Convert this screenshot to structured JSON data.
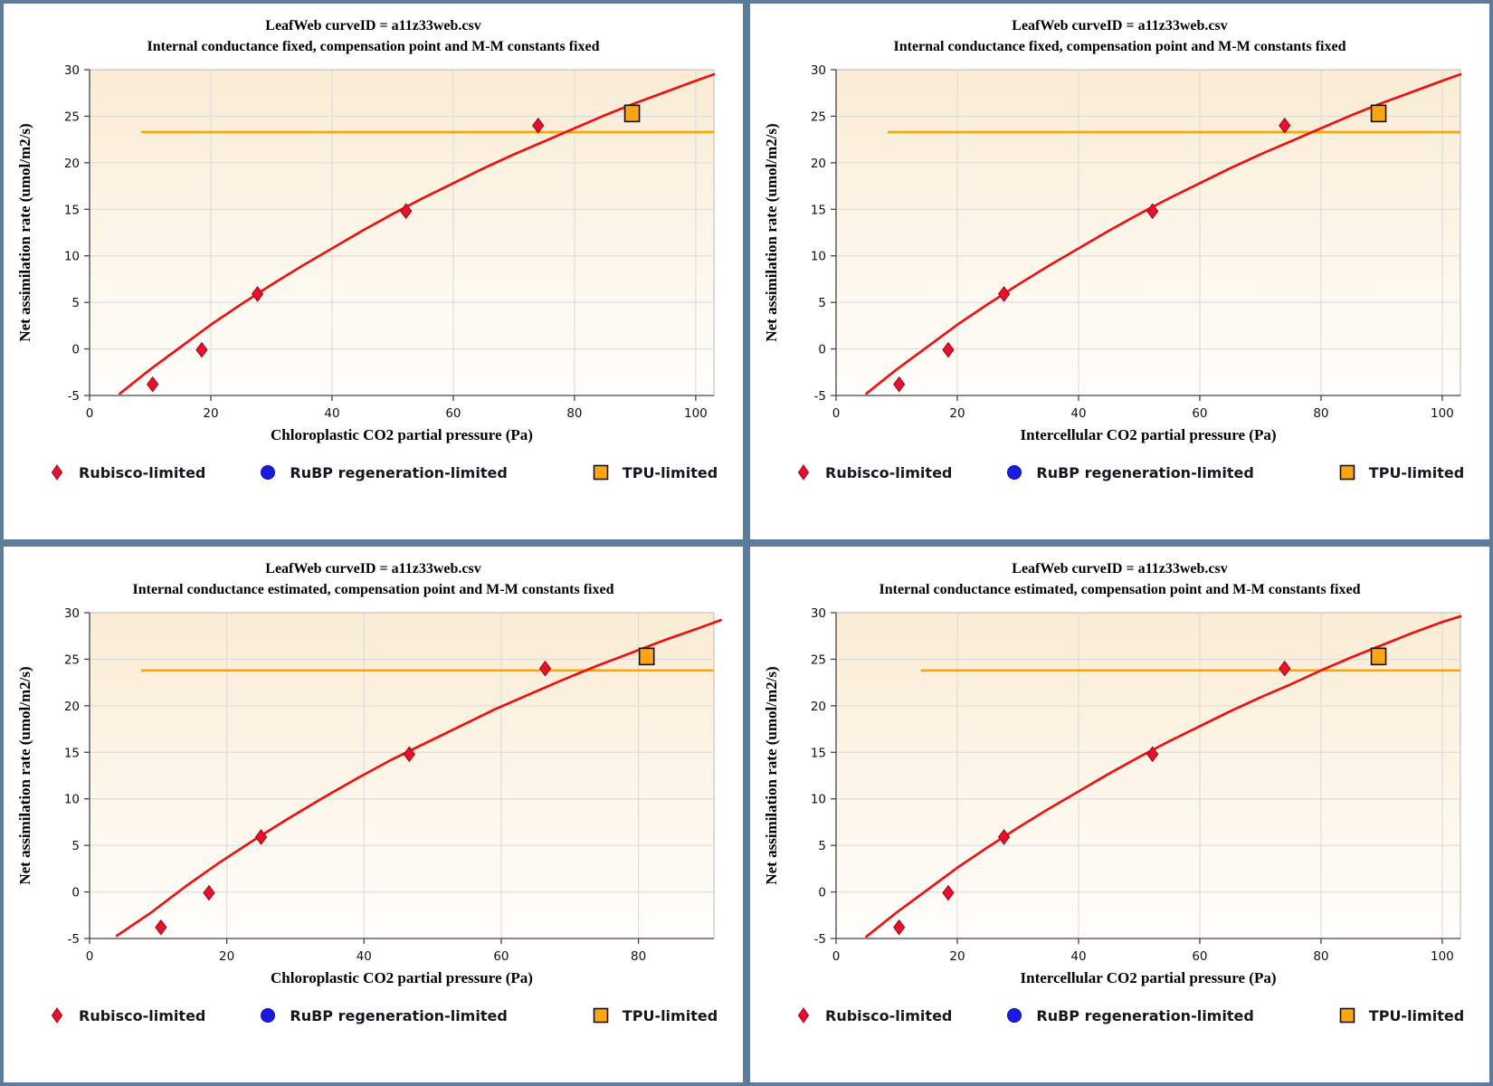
{
  "colors": {
    "frame": "#5d7c9b",
    "panel_bg": "#ffffff",
    "plot_grad_top": "#faecd4",
    "plot_grad_mid": "#fdf6ea",
    "plot_grad_bottom": "#fffefb",
    "grid": "#d8d8d8",
    "plot_border": "#b8b8b8",
    "axis": "#444444",
    "curve_red": "#ee1111",
    "diamond_fill": "#e8112d",
    "diamond_edge": "#9c0018",
    "circle_blue": "#1b1bdd",
    "square_fill": "#ffa513",
    "square_edge": "#111111",
    "tpu_line": "#ffa500",
    "legend_text": "#16161d"
  },
  "legend": {
    "items": [
      {
        "marker": "diamond",
        "label": "Rubisco-limited"
      },
      {
        "marker": "circle",
        "label": "RuBP regeneration-limited"
      },
      {
        "marker": "square",
        "label": "TPU-limited"
      }
    ]
  },
  "chart_data": [
    {
      "type": "scatter",
      "title": "LeafWeb curveID = a11z33web.csv",
      "subtitle": "Internal conductance fixed, compensation point and M-M constants fixed",
      "xlabel": "Chloroplastic CO2 partial pressure (Pa)",
      "ylabel": "Net assimilation rate (umol/m2/s)",
      "xlim": [
        0,
        103
      ],
      "ylim": [
        -5,
        30
      ],
      "x_ticks": [
        0,
        20,
        40,
        60,
        80,
        100
      ],
      "y_ticks": [
        -5,
        0,
        5,
        10,
        15,
        20,
        25,
        30
      ],
      "rubisco_points": [
        [
          10.4,
          -3.8
        ],
        [
          18.5,
          -0.1
        ],
        [
          27.7,
          5.9
        ],
        [
          52.2,
          14.8
        ],
        [
          74.0,
          24.0
        ]
      ],
      "tpu_point": [
        89.5,
        25.3
      ],
      "tpu_line": {
        "y": 23.3,
        "x_start": 8.5
      },
      "fit_curve": {
        "x": [
          5,
          10,
          15,
          20,
          25,
          30,
          35,
          40,
          45,
          50,
          55,
          60,
          65,
          70,
          75,
          80,
          85,
          90,
          95,
          100,
          103
        ],
        "y": [
          -4.8,
          -2.2,
          0.2,
          2.6,
          4.8,
          6.9,
          8.9,
          10.8,
          12.7,
          14.5,
          16.2,
          17.8,
          19.4,
          20.9,
          22.3,
          23.7,
          25.1,
          26.4,
          27.6,
          28.8,
          29.5
        ]
      }
    },
    {
      "type": "scatter",
      "title": "LeafWeb curveID = a11z33web.csv",
      "subtitle": "Internal conductance fixed, compensation point and M-M constants fixed",
      "xlabel": "Intercellular CO2 partial pressure (Pa)",
      "ylabel": "Net assimilation rate (umol/m2/s)",
      "xlim": [
        0,
        103
      ],
      "ylim": [
        -5,
        30
      ],
      "x_ticks": [
        0,
        20,
        40,
        60,
        80,
        100
      ],
      "y_ticks": [
        -5,
        0,
        5,
        10,
        15,
        20,
        25,
        30
      ],
      "rubisco_points": [
        [
          10.4,
          -3.8
        ],
        [
          18.5,
          -0.1
        ],
        [
          27.7,
          5.9
        ],
        [
          52.2,
          14.8
        ],
        [
          74.0,
          24.0
        ]
      ],
      "tpu_point": [
        89.5,
        25.3
      ],
      "tpu_line": {
        "y": 23.3,
        "x_start": 8.5
      },
      "fit_curve": {
        "x": [
          5,
          10,
          15,
          20,
          25,
          30,
          35,
          40,
          45,
          50,
          55,
          60,
          65,
          70,
          75,
          80,
          85,
          90,
          95,
          100,
          103
        ],
        "y": [
          -4.8,
          -2.2,
          0.2,
          2.6,
          4.8,
          6.9,
          8.9,
          10.8,
          12.7,
          14.5,
          16.2,
          17.8,
          19.4,
          20.9,
          22.3,
          23.7,
          25.1,
          26.4,
          27.6,
          28.8,
          29.5
        ]
      }
    },
    {
      "type": "scatter",
      "title": "LeafWeb curveID = a11z33web.csv",
      "subtitle": "Internal conductance estimated, compensation point and M-M constants fixed",
      "xlabel": "Chloroplastic CO2 partial pressure (Pa)",
      "ylabel": "Net assimilation rate (umol/m2/s)",
      "xlim": [
        0,
        91
      ],
      "ylim": [
        -5,
        30
      ],
      "x_ticks": [
        0,
        20,
        40,
        60,
        80
      ],
      "y_ticks": [
        -5,
        0,
        5,
        10,
        15,
        20,
        25,
        30
      ],
      "rubisco_points": [
        [
          10.4,
          -3.8
        ],
        [
          17.4,
          -0.1
        ],
        [
          25.0,
          5.9
        ],
        [
          46.6,
          14.8
        ],
        [
          66.4,
          24.0
        ]
      ],
      "tpu_point": [
        81.2,
        25.3
      ],
      "tpu_line": {
        "y": 23.8,
        "x_start": 7.5
      },
      "fit_curve": {
        "x": [
          4,
          9,
          14,
          19,
          24,
          29,
          34,
          39,
          44,
          49,
          54,
          59,
          64,
          69,
          74,
          79,
          84,
          89,
          92
        ],
        "y": [
          -4.7,
          -2.2,
          0.6,
          3.2,
          5.6,
          7.9,
          10.1,
          12.2,
          14.2,
          16.0,
          17.8,
          19.6,
          21.2,
          22.8,
          24.3,
          25.7,
          27.1,
          28.4,
          29.2
        ]
      }
    },
    {
      "type": "scatter",
      "title": "LeafWeb curveID = a11z33web.csv",
      "subtitle": "Internal conductance estimated, compensation point and M-M constants fixed",
      "xlabel": "Intercellular CO2 partial pressure (Pa)",
      "ylabel": "Net assimilation rate (umol/m2/s)",
      "xlim": [
        0,
        103
      ],
      "ylim": [
        -5,
        30
      ],
      "x_ticks": [
        0,
        20,
        40,
        60,
        80,
        100
      ],
      "y_ticks": [
        -5,
        0,
        5,
        10,
        15,
        20,
        25,
        30
      ],
      "rubisco_points": [
        [
          10.4,
          -3.8
        ],
        [
          18.5,
          -0.1
        ],
        [
          27.7,
          5.9
        ],
        [
          52.2,
          14.8
        ],
        [
          74.0,
          24.0
        ]
      ],
      "tpu_point": [
        89.5,
        25.3
      ],
      "tpu_line": {
        "y": 23.8,
        "x_start": 14.0
      },
      "fit_curve": {
        "x": [
          5,
          10,
          15,
          20,
          25,
          30,
          35,
          40,
          45,
          50,
          55,
          60,
          65,
          70,
          75,
          80,
          85,
          90,
          95,
          100,
          103
        ],
        "y": [
          -4.8,
          -2.2,
          0.2,
          2.6,
          4.8,
          6.9,
          8.9,
          10.8,
          12.7,
          14.5,
          16.2,
          17.8,
          19.4,
          20.9,
          22.3,
          23.8,
          25.2,
          26.5,
          27.8,
          29.0,
          29.6
        ]
      }
    }
  ]
}
